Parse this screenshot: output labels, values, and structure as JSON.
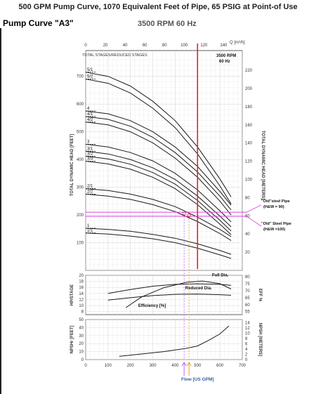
{
  "header": {
    "title": "500 GPM Pump Curve, 1070 Equivalent Feet of Pipe, 65 PSIG at Point-of Use",
    "pump_name": "Pump Curve \"A3\"",
    "speed": "3500 RPM 60 Hz"
  },
  "colors": {
    "curve": "#1a1a1a",
    "operating_line": "#e0202a",
    "system_curve": "#e040e0",
    "marker_orange": "#f0a020",
    "marker_violet": "#c060ff",
    "grid": "#d8d8d8"
  },
  "chart_data": [
    {
      "type": "line",
      "title": "",
      "xlabel": "Flow [US GPM]",
      "x_ticks": [
        "0",
        "100",
        "200",
        "300",
        "400",
        "500",
        "600",
        "700"
      ],
      "top_axis_label": "Q [m³/h]",
      "top_ticks": [
        "0",
        "20",
        "40",
        "60",
        "80",
        "100",
        "120",
        "140"
      ],
      "ylabel": "TOTAL DYNAMIC HEAD [FEET]",
      "y_ticks": [
        "100",
        "200",
        "300",
        "400",
        "500",
        "600",
        "700"
      ],
      "ylabel_right": "TOTAL DYNAMIC HEAD [METERS]",
      "y_ticks_right": [
        "20",
        "40",
        "60",
        "80",
        "100",
        "120",
        "140",
        "160",
        "180",
        "200",
        "220"
      ],
      "inner_label": "TOTAL STAGES/REDUCED STAGES",
      "speed_label_1": "3500 RPM",
      "speed_label_2": "60 Hz",
      "xlim": [
        0,
        700
      ],
      "ylim": [
        0,
        760
      ],
      "stage_labels": [
        "5/1",
        "5/2",
        "4",
        "4/1",
        "4/2",
        "3",
        "3/1",
        "3/2",
        "3/3",
        "2/1",
        "2/2",
        "1",
        "1/1"
      ],
      "stage_curves": [
        {
          "name": "5/1",
          "x": [
            0,
            100,
            200,
            300,
            400,
            500,
            600,
            650
          ],
          "y": [
            715,
            700,
            665,
            610,
            540,
            445,
            330,
            265
          ]
        },
        {
          "name": "5/2",
          "x": [
            0,
            100,
            200,
            300,
            400,
            500,
            600,
            650
          ],
          "y": [
            690,
            675,
            640,
            585,
            515,
            420,
            305,
            240
          ]
        },
        {
          "name": "4",
          "x": [
            0,
            100,
            200,
            300,
            400,
            500,
            600,
            650
          ],
          "y": [
            575,
            565,
            540,
            500,
            445,
            375,
            285,
            235
          ]
        },
        {
          "name": "4/1",
          "x": [
            0,
            100,
            200,
            300,
            400,
            500,
            600,
            650
          ],
          "y": [
            555,
            545,
            520,
            480,
            425,
            355,
            268,
            218
          ]
        },
        {
          "name": "4/2",
          "x": [
            0,
            100,
            200,
            300,
            400,
            500,
            600,
            650
          ],
          "y": [
            535,
            525,
            500,
            460,
            405,
            336,
            250,
            200
          ]
        },
        {
          "name": "3",
          "x": [
            0,
            100,
            200,
            300,
            400,
            500,
            600,
            650
          ],
          "y": [
            455,
            445,
            425,
            395,
            350,
            290,
            215,
            175
          ]
        },
        {
          "name": "3/1",
          "x": [
            0,
            100,
            200,
            300,
            400,
            500,
            600,
            650
          ],
          "y": [
            430,
            420,
            400,
            370,
            328,
            268,
            196,
            157
          ]
        },
        {
          "name": "3/2",
          "x": [
            0,
            100,
            200,
            300,
            400,
            500,
            600,
            650
          ],
          "y": [
            412,
            402,
            383,
            353,
            311,
            252,
            181,
            142
          ]
        },
        {
          "name": "3/3",
          "x": [
            0,
            100,
            200,
            300,
            400,
            500,
            600,
            650
          ],
          "y": [
            394,
            384,
            365,
            336,
            295,
            237,
            167,
            129
          ]
        },
        {
          "name": "2/1",
          "x": [
            0,
            100,
            200,
            300,
            400,
            500,
            600,
            650
          ],
          "y": [
            295,
            288,
            275,
            256,
            230,
            192,
            148,
            122
          ]
        },
        {
          "name": "2/2",
          "x": [
            0,
            100,
            200,
            300,
            400,
            500,
            600,
            650
          ],
          "y": [
            275,
            268,
            256,
            237,
            212,
            176,
            133,
            108
          ]
        },
        {
          "name": "1",
          "x": [
            0,
            100,
            200,
            300,
            400,
            500,
            600,
            650
          ],
          "y": [
            152,
            148,
            141,
            130,
            116,
            96,
            72,
            58
          ]
        },
        {
          "name": "1/1",
          "x": [
            0,
            100,
            200,
            300,
            400,
            500,
            600,
            650
          ],
          "y": [
            135,
            131,
            124,
            114,
            100,
            80,
            56,
            43
          ]
        }
      ],
      "system_curves": [
        {
          "name": "\"Old\"steel Pipe (H&W = 90)",
          "head_ft": 210
        },
        {
          "name": "\"Old\" Steel Pipe (H&W =100)",
          "head_ft": 195
        }
      ],
      "annotations": {
        "old_steel_90_line1": "\"Old\"steel Pipe",
        "old_steel_90_line2": "(H&W = 90)",
        "old_steel_100_line1": "\"Old\" Steel Pipe",
        "old_steel_100_line2": "(H&W =100)"
      },
      "design_flow_gpm": 500,
      "operating_points": [
        {
          "x": 440,
          "y": 205
        },
        {
          "x": 462,
          "y": 198
        }
      ]
    },
    {
      "type": "line",
      "ylabel": "HP/STAGE",
      "y_ticks": [
        "8",
        "10",
        "12",
        "14",
        "16",
        "18",
        "20"
      ],
      "ylabel_right": "EFF %",
      "y_ticks_right": [
        "55",
        "60",
        "65",
        "70",
        "75",
        "80"
      ],
      "ylim": [
        8,
        20
      ],
      "labels": {
        "full_dia": "Full Dia.",
        "reduced_dia": "Reduced Dia.",
        "efficiency": "Efficiency [%]"
      },
      "series": [
        {
          "name": "Full Dia.",
          "x": [
            100,
            200,
            300,
            400,
            500,
            600,
            650
          ],
          "y": [
            14.0,
            15.3,
            16.4,
            17.0,
            17.2,
            17.0,
            16.7
          ]
        },
        {
          "name": "Reduced Dia.",
          "x": [
            100,
            200,
            300,
            400,
            500,
            600,
            650
          ],
          "y": [
            11.8,
            12.6,
            13.3,
            13.7,
            13.8,
            13.6,
            13.4
          ]
        },
        {
          "name": "Efficiency [%]",
          "x": [
            180,
            250,
            350,
            450,
            520,
            600,
            650
          ],
          "y_eff": [
            58,
            66,
            73,
            77,
            78,
            76,
            72
          ]
        }
      ]
    },
    {
      "type": "line",
      "ylabel": "NPSHr [FEET]",
      "y_ticks": [
        "0",
        "10",
        "20",
        "30",
        "40",
        "50"
      ],
      "ylabel_right": "NPSH [METERS]",
      "y_ticks_right": [
        "0",
        "2",
        "4",
        "6",
        "8",
        "10",
        "12",
        "14"
      ],
      "ylim": [
        0,
        50
      ],
      "series": [
        {
          "name": "NPSHr",
          "x": [
            150,
            250,
            350,
            450,
            500,
            550,
            600,
            640
          ],
          "y": [
            4,
            7,
            10,
            14,
            17,
            24,
            32,
            42
          ]
        }
      ]
    }
  ]
}
